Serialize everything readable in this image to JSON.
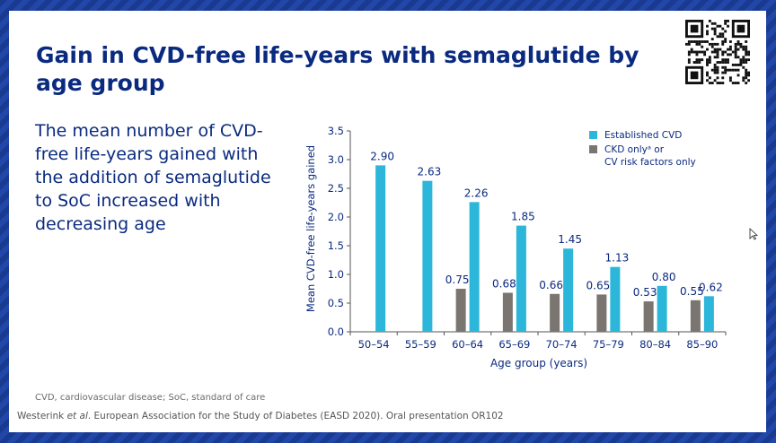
{
  "slide": {
    "title": "Gain in CVD-free life-years with semaglutide by age group",
    "body": "The mean number of CVD-free life-years gained with the addition of semaglutide to SoC increased with decreasing age",
    "footnote": "CVD, cardiovascular disease; SoC, standard of care",
    "citation_author": "Westerink",
    "citation_etal": "et al",
    "citation_rest": ". European Association for the Study of Diabetes (EASD 2020). Oral presentation OR102",
    "icons": [
      "qr-code-icon",
      "cursor-icon"
    ]
  },
  "chart_data": {
    "type": "bar",
    "xlabel": "Age group (years)",
    "ylabel": "Mean CVD-free life-years gained",
    "ylim": [
      0,
      3.5
    ],
    "yticks": [
      "0.0",
      "0.5",
      "1.0",
      "1.5",
      "2.0",
      "2.5",
      "3.0",
      "3.5"
    ],
    "grid": false,
    "legend_position": "top-right",
    "categories": [
      "50–54",
      "55–59",
      "60–64",
      "65–69",
      "70–74",
      "75–79",
      "80–84",
      "85–90"
    ],
    "series": [
      {
        "name": "CKD onlyᵃ or CV risk factors only",
        "legend_lines": [
          "CKD onlyᵃ or",
          "CV risk factors only"
        ],
        "color": "#7a7570",
        "values": [
          null,
          null,
          0.75,
          0.68,
          0.66,
          0.65,
          0.53,
          0.55
        ],
        "labels": [
          "",
          "",
          "0.75",
          "0.68",
          "0.66",
          "0.65",
          "0.53",
          "0.55"
        ]
      },
      {
        "name": "Established CVD",
        "legend_lines": [
          "Established CVD"
        ],
        "color": "#2bb6da",
        "values": [
          2.9,
          2.63,
          2.26,
          1.85,
          1.45,
          1.13,
          0.8,
          0.62
        ],
        "labels": [
          "2.90",
          "2.63",
          "2.26",
          "1.85",
          "1.45",
          "1.13",
          "0.80",
          "0.62"
        ]
      }
    ]
  }
}
